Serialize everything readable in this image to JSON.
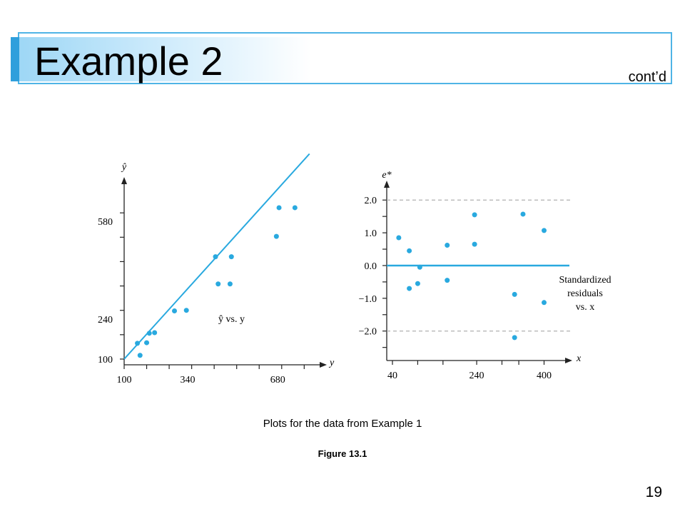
{
  "slide": {
    "title": "Example 2",
    "contd": "cont’d",
    "caption": "Plots for the data from Example 1",
    "figure_label": "Figure 13.1",
    "page_number": "19"
  },
  "colors": {
    "accent": "#29a9df",
    "dashed": "#b0b0b0",
    "axis": "#222222"
  },
  "chart_data": [
    {
      "type": "scatter",
      "title": "",
      "xlabel": "y",
      "ylabel": "ŷ",
      "annotation": "ŷ vs. y",
      "xlim": [
        100,
        860
      ],
      "ylim": [
        80,
        730
      ],
      "x_ticks": [
        100,
        340,
        680
      ],
      "y_ticks": [
        100,
        240,
        580
      ],
      "fit_line": [
        [
          100,
          100
        ],
        [
          800,
          816
        ]
      ],
      "points": [
        {
          "x": 150,
          "y": 155
        },
        {
          "x": 160,
          "y": 113
        },
        {
          "x": 185,
          "y": 157
        },
        {
          "x": 195,
          "y": 190
        },
        {
          "x": 215,
          "y": 192
        },
        {
          "x": 290,
          "y": 268
        },
        {
          "x": 335,
          "y": 270
        },
        {
          "x": 445,
          "y": 457
        },
        {
          "x": 455,
          "y": 362
        },
        {
          "x": 500,
          "y": 362
        },
        {
          "x": 505,
          "y": 457
        },
        {
          "x": 675,
          "y": 528
        },
        {
          "x": 685,
          "y": 628
        },
        {
          "x": 745,
          "y": 628
        }
      ]
    },
    {
      "type": "scatter",
      "title": "",
      "xlabel": "x",
      "ylabel": "e*",
      "annotation": [
        "Standardized",
        "residuals",
        "vs. x"
      ],
      "xlim": [
        40,
        450
      ],
      "ylim": [
        -2.9,
        2.55
      ],
      "x_ticks": [
        40,
        240,
        400
      ],
      "y_ticks": [
        -2.0,
        -1.0,
        0.0,
        1.0,
        2.0
      ],
      "y_tick_labels": [
        "−2.0",
        "−1.0",
        "0.0",
        "1.0",
        "2.0"
      ],
      "reference_lines": [
        {
          "y": 0.0,
          "style": "solid"
        },
        {
          "y": 2.0,
          "style": "dashed"
        },
        {
          "y": -2.0,
          "style": "dashed"
        }
      ],
      "points": [
        {
          "x": 55,
          "y": 0.85
        },
        {
          "x": 80,
          "y": 0.45
        },
        {
          "x": 80,
          "y": -0.7
        },
        {
          "x": 100,
          "y": -0.55
        },
        {
          "x": 105,
          "y": -0.05
        },
        {
          "x": 170,
          "y": 0.62
        },
        {
          "x": 170,
          "y": -0.45
        },
        {
          "x": 235,
          "y": 1.55
        },
        {
          "x": 235,
          "y": 0.65
        },
        {
          "x": 330,
          "y": -0.88
        },
        {
          "x": 330,
          "y": -2.2
        },
        {
          "x": 350,
          "y": 1.57
        },
        {
          "x": 400,
          "y": 1.07
        },
        {
          "x": 400,
          "y": -1.13
        }
      ]
    }
  ]
}
